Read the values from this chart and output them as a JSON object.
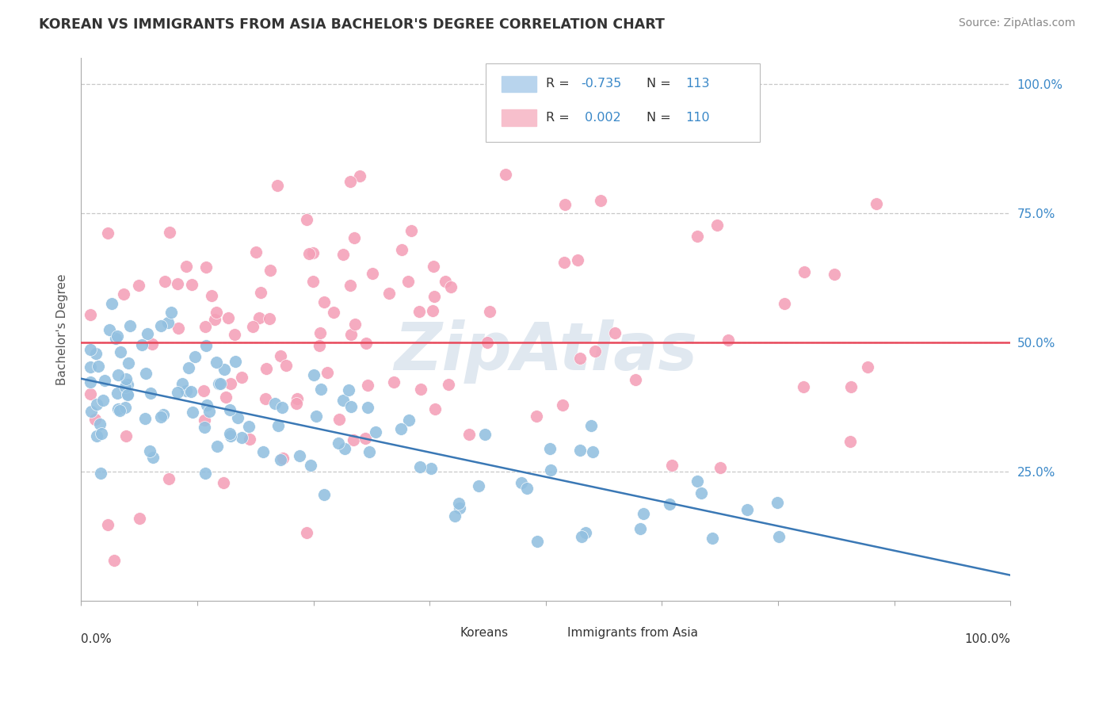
{
  "title": "KOREAN VS IMMIGRANTS FROM ASIA BACHELOR'S DEGREE CORRELATION CHART",
  "source": "Source: ZipAtlas.com",
  "ylabel": "Bachelor's Degree",
  "blue_R": -0.735,
  "blue_N": 113,
  "pink_R": 0.002,
  "pink_N": 110,
  "blue_scatter_color": "#92c0e0",
  "pink_scatter_color": "#f4a0b8",
  "blue_line_color": "#3a78b5",
  "pink_line_color": "#e8485a",
  "blue_legend_color": "#b8d4ed",
  "pink_legend_color": "#f7bfcc",
  "watermark_color": "#e0e8f0",
  "background_color": "#ffffff",
  "grid_color": "#c8c8c8",
  "title_color": "#333333",
  "seed": 99,
  "xlim": [
    0.0,
    1.0
  ],
  "ylim": [
    0.0,
    1.05
  ],
  "blue_line_start_y": 0.43,
  "blue_line_end_y": 0.05,
  "pink_line_y": 0.5
}
